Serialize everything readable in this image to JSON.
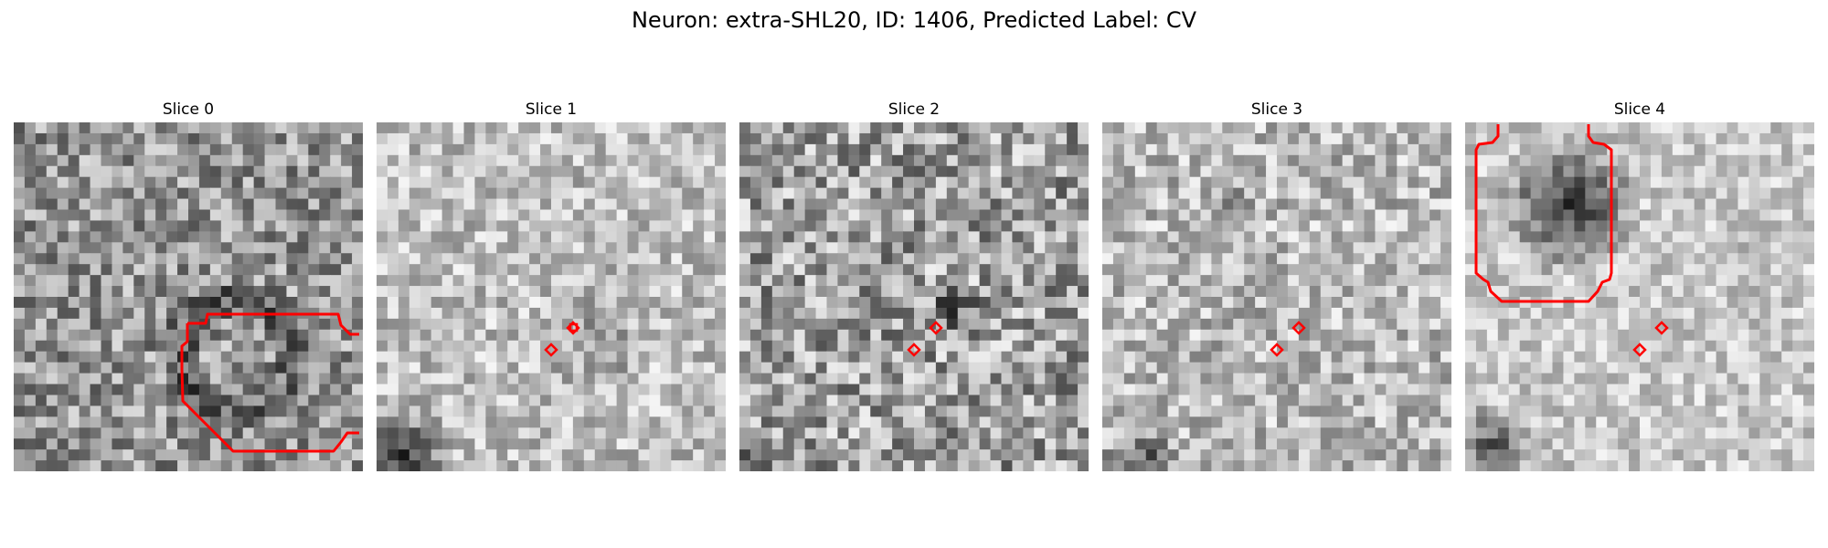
{
  "figure": {
    "title": "Neuron: extra-SHL20, ID: 1406, Predicted Label: CV"
  },
  "colors": {
    "annotation": "#ff0000",
    "background": "#ffffff"
  },
  "panels": [
    {
      "title": "Slice 0",
      "seed": 11,
      "base": 150,
      "spread": 70
    },
    {
      "title": "Slice 1",
      "seed": 27,
      "base": 190,
      "spread": 55
    },
    {
      "title": "Slice 2",
      "seed": 43,
      "base": 160,
      "spread": 80
    },
    {
      "title": "Slice 3",
      "seed": 59,
      "base": 185,
      "spread": 60
    },
    {
      "title": "Slice 4",
      "seed": 71,
      "base": 200,
      "spread": 45
    }
  ]
}
